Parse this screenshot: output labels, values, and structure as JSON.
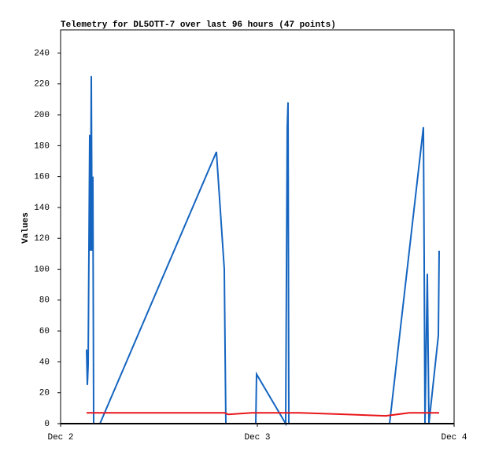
{
  "chart_data": {
    "type": "line",
    "title": "Telemetry for DL5OTT-7 over last 96 hours (47 points)",
    "y_label": "Values",
    "xlim": [
      0,
      2
    ],
    "xticks": [
      {
        "value": 0,
        "label": "Dec 2"
      },
      {
        "value": 1,
        "label": "Dec 3"
      },
      {
        "value": 2,
        "label": "Dec 4"
      }
    ],
    "ylim": [
      0,
      255
    ],
    "yticks": [
      0,
      20,
      40,
      60,
      80,
      100,
      120,
      140,
      160,
      180,
      200,
      220,
      240
    ],
    "series": [
      {
        "color": "#1565c0",
        "x": [
          0.132,
          0.136,
          0.14,
          0.144,
          0.148,
          0.152,
          0.156,
          0.16,
          0.164,
          0.168,
          0.2,
          0.792,
          0.832,
          0.836,
          0.84,
          0.992,
          0.996,
          1.144,
          1.152,
          1.156,
          1.16,
          1.672,
          1.844,
          1.848,
          1.852,
          1.864,
          1.868,
          1.872,
          1.92,
          1.924
        ],
        "values": [
          48,
          25,
          38,
          112,
          187,
          112,
          225,
          112,
          160,
          0,
          0,
          176,
          100,
          48,
          0,
          0,
          32,
          0,
          192,
          208,
          0,
          0,
          192,
          105,
          0,
          97,
          48,
          0,
          57,
          112
        ]
      },
      {
        "color": "#e8161b",
        "x": [
          0.132,
          0.832,
          0.852,
          0.972,
          1.212,
          1.452,
          1.652,
          1.772,
          1.924
        ],
        "values": [
          7,
          7,
          6,
          7,
          7,
          6,
          5,
          7,
          7
        ]
      }
    ]
  }
}
